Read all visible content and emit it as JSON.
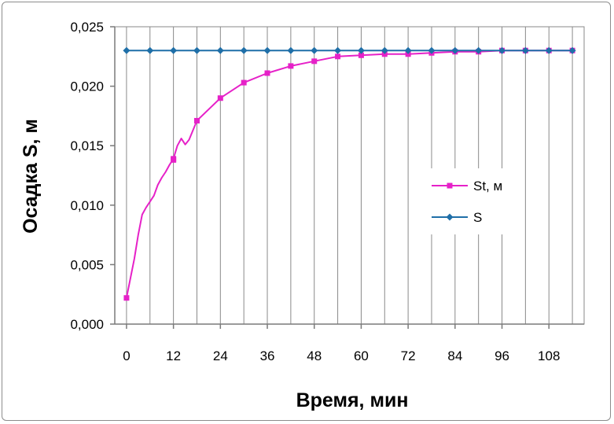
{
  "chart_data": {
    "type": "line",
    "title": "",
    "xlabel": "Время, мин",
    "ylabel": "Осадка S, м",
    "xlim": [
      -3,
      117
    ],
    "ylim": [
      0,
      0.025
    ],
    "x_ticks": [
      0,
      12,
      24,
      36,
      48,
      60,
      72,
      84,
      96,
      108
    ],
    "x_tick_labels": [
      "0",
      "12",
      "24",
      "36",
      "48",
      "60",
      "72",
      "84",
      "96",
      "108"
    ],
    "y_ticks": [
      0,
      0.005,
      0.01,
      0.015,
      0.02,
      0.025
    ],
    "y_tick_labels": [
      "0,000",
      "0,005",
      "0,010",
      "0,015",
      "0,020",
      "0,025"
    ],
    "grid": "vertical",
    "legend_position": "right",
    "series": [
      {
        "name": "St, м",
        "color": "#e621c8",
        "marker": "square",
        "points": [
          [
            0,
            0.0022
          ],
          [
            12,
            0.0139
          ],
          [
            12,
            0.0138
          ],
          [
            18,
            0.0171
          ],
          [
            24,
            0.019
          ],
          [
            30,
            0.0203
          ],
          [
            36,
            0.0211
          ],
          [
            42,
            0.0217
          ],
          [
            48,
            0.0221
          ],
          [
            54,
            0.0225
          ],
          [
            60,
            0.0226
          ],
          [
            66,
            0.0227
          ],
          [
            72,
            0.0227
          ],
          [
            78,
            0.0228
          ],
          [
            84,
            0.0229
          ],
          [
            90,
            0.0229
          ],
          [
            96,
            0.023
          ],
          [
            102,
            0.023
          ],
          [
            108,
            0.023
          ],
          [
            114,
            0.023
          ]
        ],
        "curve_points": [
          [
            0,
            0.0022
          ],
          [
            2,
            0.0055
          ],
          [
            3,
            0.0075
          ],
          [
            4,
            0.0092
          ],
          [
            5,
            0.0098
          ],
          [
            6,
            0.0103
          ],
          [
            7,
            0.0108
          ],
          [
            8,
            0.0117
          ],
          [
            9,
            0.0123
          ],
          [
            10,
            0.0128
          ],
          [
            11,
            0.0134
          ],
          [
            12,
            0.0139
          ],
          [
            13,
            0.015
          ],
          [
            14,
            0.0156
          ],
          [
            15,
            0.0151
          ],
          [
            16,
            0.0155
          ],
          [
            18,
            0.0171
          ],
          [
            24,
            0.019
          ],
          [
            30,
            0.0203
          ],
          [
            36,
            0.0211
          ],
          [
            42,
            0.0217
          ],
          [
            48,
            0.0221
          ],
          [
            54,
            0.0225
          ],
          [
            60,
            0.0226
          ],
          [
            66,
            0.0227
          ],
          [
            72,
            0.0227
          ],
          [
            78,
            0.0228
          ],
          [
            84,
            0.0229
          ],
          [
            90,
            0.0229
          ],
          [
            96,
            0.023
          ],
          [
            102,
            0.023
          ],
          [
            108,
            0.023
          ],
          [
            114,
            0.023
          ]
        ]
      },
      {
        "name": "S",
        "color": "#1f6fa8",
        "marker": "diamond",
        "points": [
          [
            0,
            0.023
          ],
          [
            6,
            0.023
          ],
          [
            12,
            0.023
          ],
          [
            18,
            0.023
          ],
          [
            24,
            0.023
          ],
          [
            30,
            0.023
          ],
          [
            36,
            0.023
          ],
          [
            42,
            0.023
          ],
          [
            48,
            0.023
          ],
          [
            54,
            0.023
          ],
          [
            60,
            0.023
          ],
          [
            66,
            0.023
          ],
          [
            72,
            0.023
          ],
          [
            78,
            0.023
          ],
          [
            84,
            0.023
          ],
          [
            90,
            0.023
          ],
          [
            96,
            0.023
          ],
          [
            102,
            0.023
          ],
          [
            108,
            0.023
          ],
          [
            114,
            0.023
          ]
        ]
      }
    ]
  }
}
